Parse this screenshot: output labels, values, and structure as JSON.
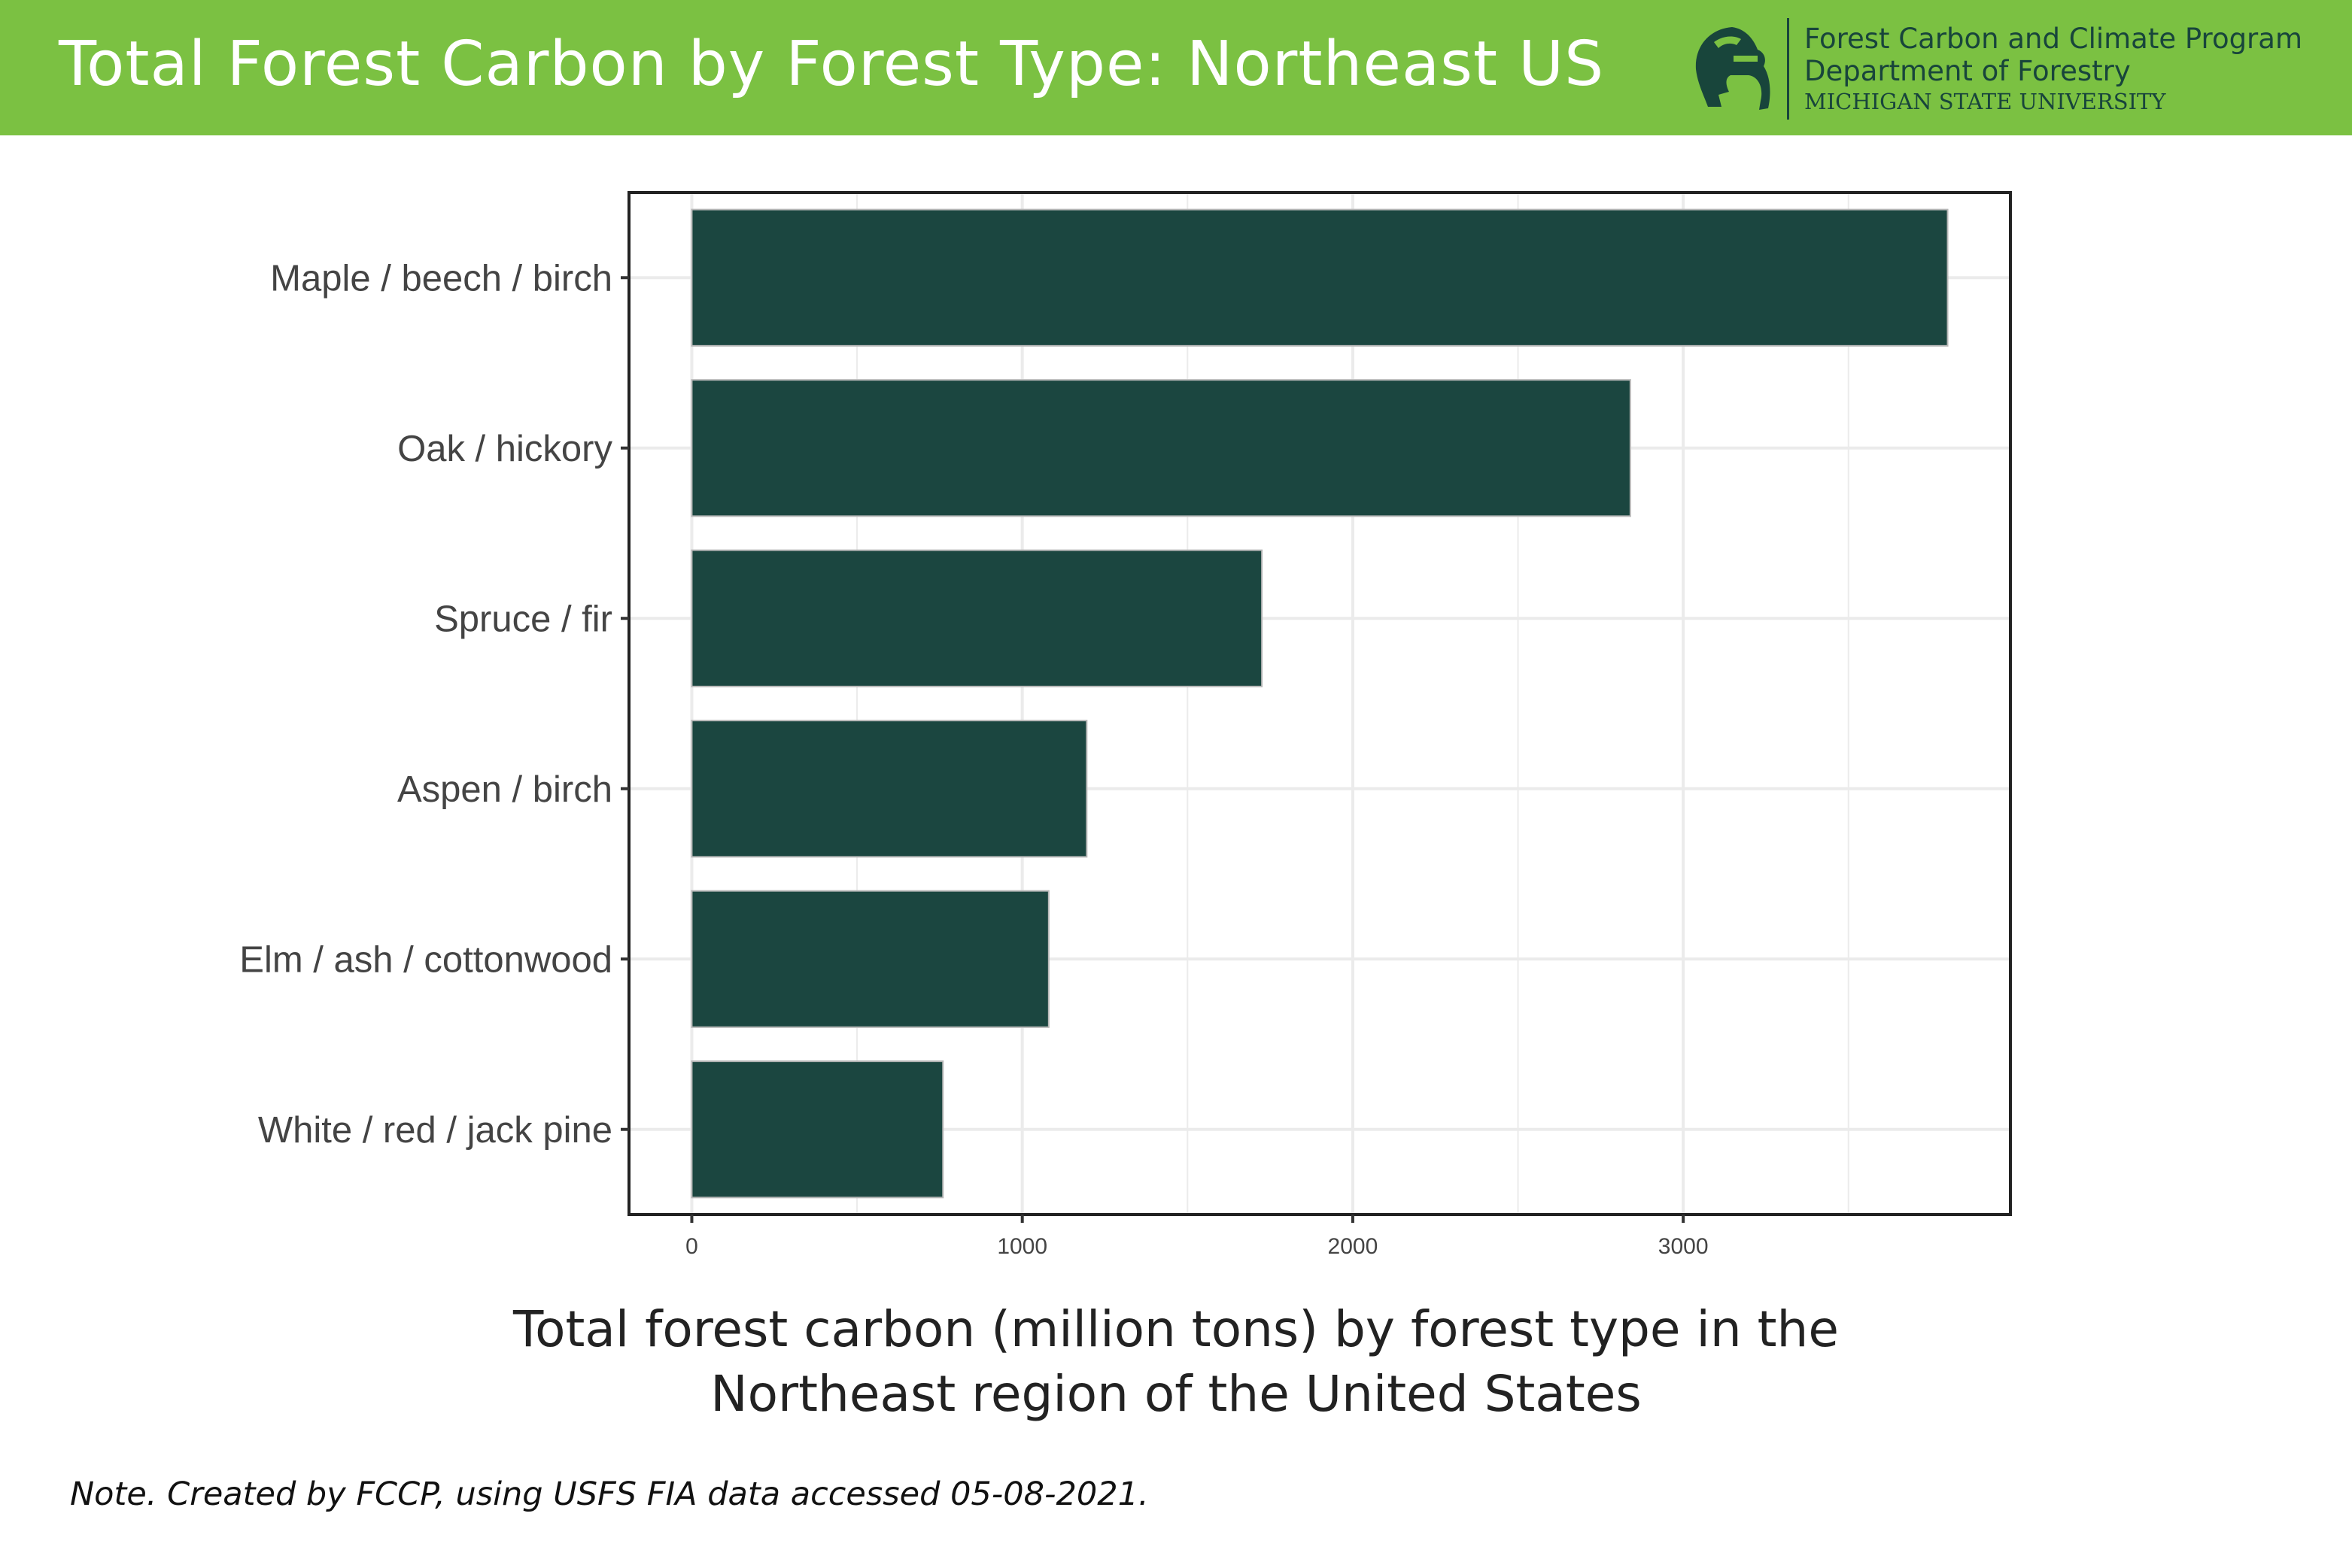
{
  "header": {
    "title": "Total Forest Carbon by Forest Type: Northeast US",
    "org_program": "Forest Carbon and Climate Program",
    "org_department": "Department of Forestry",
    "org_university": "MICHIGAN STATE UNIVERSITY",
    "logo_icon": "spartan-helmet-icon"
  },
  "colors": {
    "header_bg": "#7bc142",
    "bar_fill": "#1b4640",
    "brand_green": "#18453b"
  },
  "chart_data": {
    "type": "bar",
    "orientation": "horizontal",
    "categories": [
      "Maple / beech / birch",
      "Oak / hickory",
      "Spruce / fir",
      "Aspen / birch",
      "Elm / ash / cottonwood",
      "White / red / jack pine"
    ],
    "values": [
      3800,
      2840,
      1725,
      1195,
      1080,
      760
    ],
    "xlim": [
      -190,
      3990
    ],
    "xticks": [
      "0",
      "1000",
      "2000",
      "3000"
    ],
    "grid": true,
    "title": "",
    "xlabel": "",
    "ylabel": ""
  },
  "caption": {
    "line1": "Total forest carbon (million tons) by forest type in the",
    "line2": "Northeast region of the United States"
  },
  "note": "Note. Created by FCCP, using USFS FIA data accessed 05-08-2021."
}
